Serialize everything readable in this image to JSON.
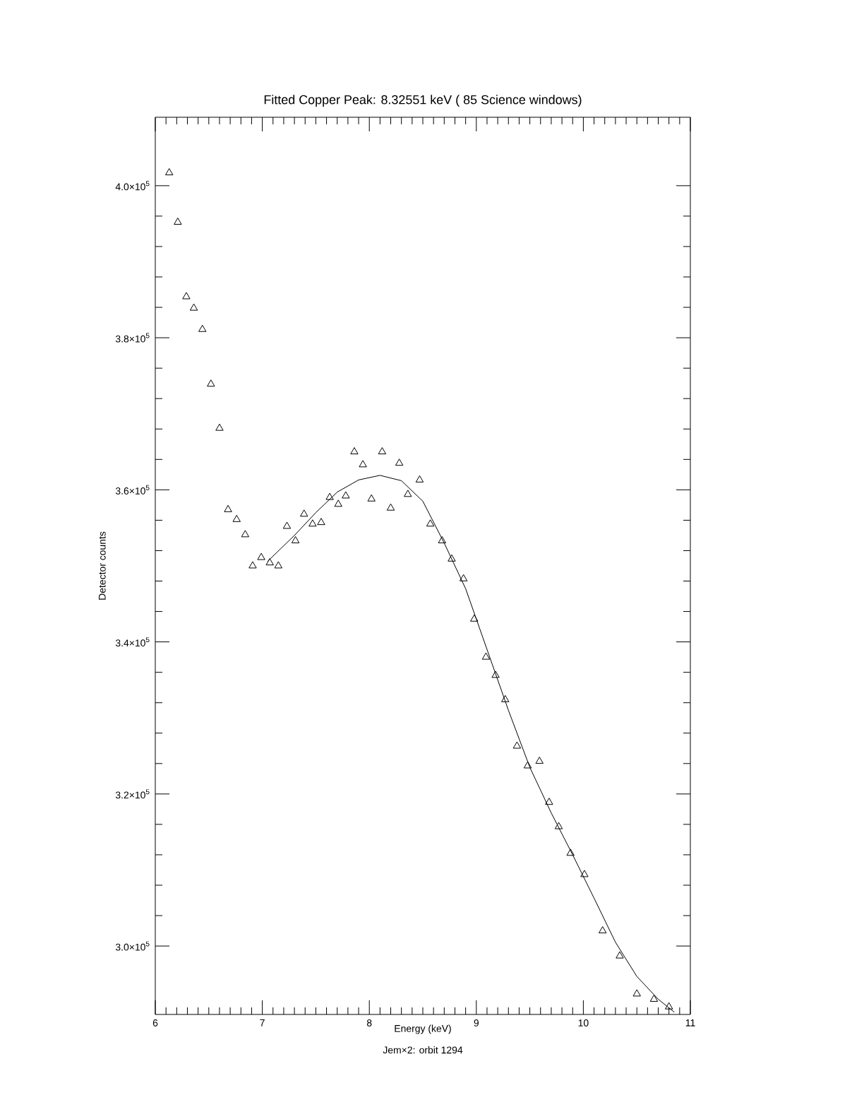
{
  "chart_data": {
    "type": "scatter",
    "title": "Fitted Copper Peak: 8.32551 keV ( 85 Science windows)",
    "xlabel": "Energy (keV)",
    "ylabel": "Detector counts",
    "annotations": [
      "Jem×2: orbit 1294"
    ],
    "xlim": [
      6,
      11
    ],
    "ylim": [
      291000,
      409000
    ],
    "xticks": [
      6,
      7,
      8,
      9,
      10,
      11
    ],
    "yticks": [
      {
        "value": 300000,
        "label": "3.0×10$^{5}$"
      },
      {
        "value": 320000,
        "label": "3.2×10$^{5}$"
      },
      {
        "value": 340000,
        "label": "3.4×10$^{5}$"
      },
      {
        "value": 360000,
        "label": "3.6×10$^{5}$"
      },
      {
        "value": 380000,
        "label": "3.8×10$^{5}$"
      },
      {
        "value": 400000,
        "label": "4.0×10$^{5}$"
      }
    ],
    "grid": false,
    "series": [
      {
        "marker": "triangle",
        "color": "#000000",
        "x": [
          6.13,
          6.21,
          6.29,
          6.36,
          6.44,
          6.52,
          6.6,
          6.68,
          6.76,
          6.84,
          6.91,
          6.99,
          7.07,
          7.15,
          7.23,
          7.31,
          7.39,
          7.47,
          7.55,
          7.63,
          7.71,
          7.78,
          7.86,
          7.94,
          8.02,
          8.12,
          8.2,
          8.28,
          8.36,
          8.47,
          8.57,
          8.68,
          8.77,
          8.88,
          8.98,
          9.09,
          9.18,
          9.27,
          9.38,
          9.48,
          9.59,
          9.68,
          9.77,
          9.88,
          10.01,
          10.18,
          10.34,
          10.5,
          10.66,
          10.8
        ],
        "values": [
          401700,
          395200,
          385400,
          383900,
          381100,
          373900,
          368100,
          357400,
          356100,
          354100,
          350000,
          351100,
          350400,
          350000,
          355200,
          353300,
          356800,
          355500,
          355700,
          359000,
          358100,
          359200,
          365000,
          363300,
          358800,
          365000,
          357600,
          363500,
          359400,
          361300,
          355500,
          353300,
          350900,
          348300,
          343000,
          338000,
          335600,
          332400,
          326300,
          323700,
          324300,
          318900,
          315700,
          312200,
          309400,
          302000,
          298700,
          293700,
          293000,
          292000
        ]
      },
      {
        "type": "line",
        "marker": "none",
        "color": "#000000",
        "x": [
          7.05,
          7.3,
          7.5,
          7.7,
          7.9,
          8.1,
          8.3,
          8.5,
          8.7,
          8.9,
          9.1,
          9.3,
          9.5,
          9.7,
          9.9,
          10.1,
          10.3,
          10.5,
          10.7,
          10.85
        ],
        "values": [
          350600,
          354000,
          357000,
          359700,
          361300,
          361900,
          361200,
          358500,
          353000,
          347000,
          339000,
          331000,
          323500,
          317500,
          312000,
          306300,
          300500,
          296000,
          293000,
          291300
        ]
      }
    ]
  }
}
